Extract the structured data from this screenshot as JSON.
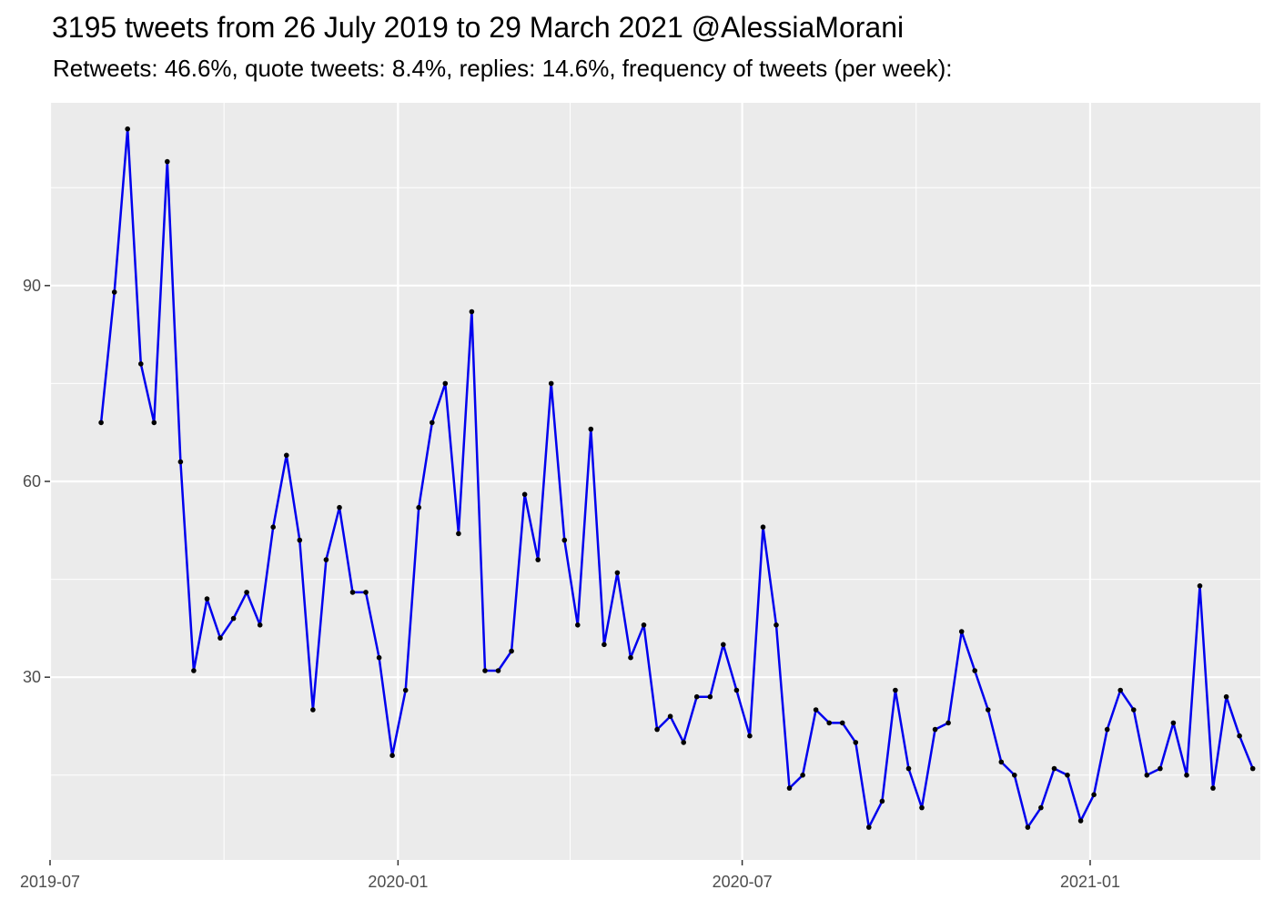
{
  "chart_data": {
    "type": "line",
    "title": "3195 tweets from 26 July 2019 to 29 March 2021 @AlessiaMorani",
    "subtitle": "Retweets: 46.6%, quote tweets: 8.4%, replies: 14.6%, frequency of tweets (per week):",
    "xlabel": "",
    "ylabel": "",
    "x_ticks": [
      "2019-07",
      "2020-01",
      "2020-07",
      "2021-01"
    ],
    "y_ticks": [
      30,
      60,
      90
    ],
    "ylim": [
      2,
      118
    ],
    "xlim": [
      "2019-07-01",
      "2021-04-01"
    ],
    "grid": true,
    "colors": {
      "line": "#0000EE",
      "point": "#000000",
      "panel": "#EBEBEB",
      "grid": "#FFFFFF"
    },
    "series": [
      {
        "x": [
          "2019-07-28",
          "2019-08-04",
          "2019-08-11",
          "2019-08-18",
          "2019-08-25",
          "2019-09-01",
          "2019-09-08",
          "2019-09-15",
          "2019-09-22",
          "2019-09-29",
          "2019-10-06",
          "2019-10-13",
          "2019-10-20",
          "2019-10-27",
          "2019-11-03",
          "2019-11-10",
          "2019-11-17",
          "2019-11-24",
          "2019-12-01",
          "2019-12-08",
          "2019-12-15",
          "2019-12-22",
          "2019-12-29",
          "2020-01-05",
          "2020-01-12",
          "2020-01-19",
          "2020-01-26",
          "2020-02-02",
          "2020-02-09",
          "2020-02-16",
          "2020-02-23",
          "2020-03-01",
          "2020-03-08",
          "2020-03-15",
          "2020-03-22",
          "2020-03-29",
          "2020-04-05",
          "2020-04-12",
          "2020-04-19",
          "2020-04-26",
          "2020-05-03",
          "2020-05-10",
          "2020-05-17",
          "2020-05-24",
          "2020-05-31",
          "2020-06-07",
          "2020-06-14",
          "2020-06-21",
          "2020-06-28",
          "2020-07-05",
          "2020-07-12",
          "2020-07-19",
          "2020-07-26",
          "2020-08-02",
          "2020-08-09",
          "2020-08-16",
          "2020-08-23",
          "2020-08-30",
          "2020-09-06",
          "2020-09-13",
          "2020-09-20",
          "2020-09-27",
          "2020-10-04",
          "2020-10-11",
          "2020-10-18",
          "2020-10-25",
          "2020-11-01",
          "2020-11-08",
          "2020-11-15",
          "2020-11-22",
          "2020-11-29",
          "2020-12-06",
          "2020-12-13",
          "2020-12-20",
          "2020-12-27",
          "2021-01-03",
          "2021-01-10",
          "2021-01-17",
          "2021-01-24",
          "2021-01-31",
          "2021-02-07",
          "2021-02-14",
          "2021-02-21",
          "2021-02-28",
          "2021-03-07",
          "2021-03-14",
          "2021-03-21",
          "2021-03-28"
        ],
        "values": [
          69,
          89,
          114,
          78,
          69,
          109,
          63,
          31,
          42,
          36,
          39,
          43,
          38,
          53,
          64,
          51,
          25,
          48,
          56,
          43,
          43,
          33,
          18,
          28,
          56,
          69,
          75,
          52,
          86,
          31,
          31,
          34,
          58,
          48,
          75,
          51,
          38,
          68,
          35,
          46,
          33,
          38,
          22,
          24,
          20,
          27,
          27,
          35,
          28,
          21,
          53,
          38,
          13,
          15,
          25,
          23,
          23,
          20,
          7,
          11,
          28,
          16,
          10,
          22,
          23,
          37,
          31,
          25,
          17,
          15,
          7,
          10,
          16,
          15,
          8,
          12,
          22,
          28,
          25,
          15,
          16,
          23,
          15,
          44,
          13,
          27,
          21,
          16
        ]
      }
    ]
  }
}
